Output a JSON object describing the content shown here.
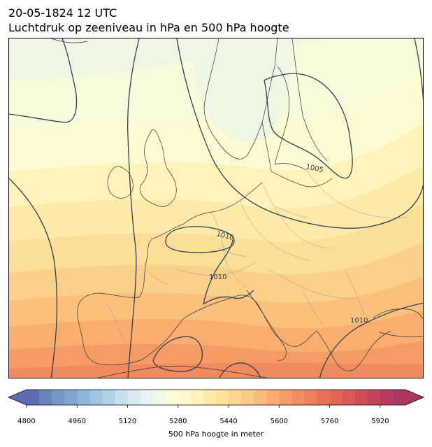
{
  "header": {
    "date": "20-05-1824 12 UTC",
    "title": "Luchtdruk op zeeniveau in hPa en 500 hPa hoogte"
  },
  "map": {
    "contour_labels": [
      "1005",
      "1010",
      "1010",
      "1010"
    ],
    "field_colors": [
      "#eef6e4",
      "#f7fadb",
      "#fefbd2",
      "#fff2bb",
      "#feeaa8",
      "#fdde97",
      "#fcd089",
      "#fbc07c",
      "#f9ae70",
      "#f69b66",
      "#f18a5f"
    ],
    "isobar_color": "#2b4052",
    "land_outline_color": "#333333",
    "border_color": "#9a9a9a"
  },
  "colorbar": {
    "label": "500 hPa hoogte in meter",
    "min": 4800,
    "max": 6000,
    "step": 40,
    "ticks": [
      "4800",
      "4960",
      "5120",
      "5280",
      "5440",
      "5600",
      "5760",
      "5920"
    ],
    "extend": "both",
    "colors": [
      "#5e6bb3",
      "#6a85bd",
      "#7696c6",
      "#7ea6cf",
      "#89b6d8",
      "#9fc5df",
      "#b1d2e6",
      "#c5dfee",
      "#d8eaf3",
      "#e8f3f2",
      "#f2f8e6",
      "#fafbd8",
      "#fef9cd",
      "#fff3bb",
      "#feebaa",
      "#fde29c",
      "#fdd68f",
      "#fcc984",
      "#fbbb7a",
      "#f9ab71",
      "#f69c69",
      "#f28e62",
      "#ee805d",
      "#e87258",
      "#e26556",
      "#da5856",
      "#d04d57",
      "#c5435a",
      "#b83b5d",
      "#a9375e"
    ]
  }
}
